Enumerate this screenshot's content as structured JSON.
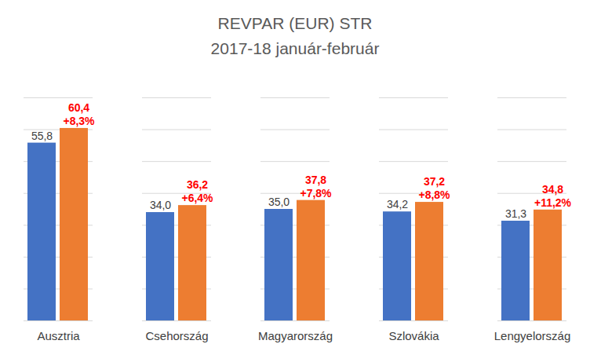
{
  "chart_data": {
    "type": "bar",
    "title": "REVPAR (EUR) STR",
    "subtitle": "2017-18 január-február",
    "categories": [
      "Ausztria",
      "Csehország",
      "Magyarország",
      "Szlovákia",
      "Lengyelország"
    ],
    "series": [
      {
        "color": "#4472c4",
        "values": [
          55.8,
          34.0,
          35.0,
          34.2,
          31.3
        ],
        "value_labels": [
          "55,8",
          "34,0",
          "35,0",
          "34,2",
          "31,3"
        ]
      },
      {
        "color": "#ed7d31",
        "values": [
          60.4,
          36.2,
          37.8,
          37.2,
          34.8
        ],
        "value_labels": [
          "60,4",
          "36,2",
          "37,8",
          "37,2",
          "34,8"
        ],
        "changes": [
          8.3,
          6.4,
          7.8,
          8.8,
          11.2
        ],
        "change_labels": [
          "+8,3%",
          "+6,4%",
          "+7,8%",
          "+8,8%",
          "+11,2%"
        ]
      }
    ],
    "ylim": [
      0,
      70
    ],
    "yticks": [
      0,
      10,
      20,
      30,
      40,
      50,
      60,
      70
    ],
    "grid": true,
    "tick_labels": "x",
    "data_labels": true
  }
}
